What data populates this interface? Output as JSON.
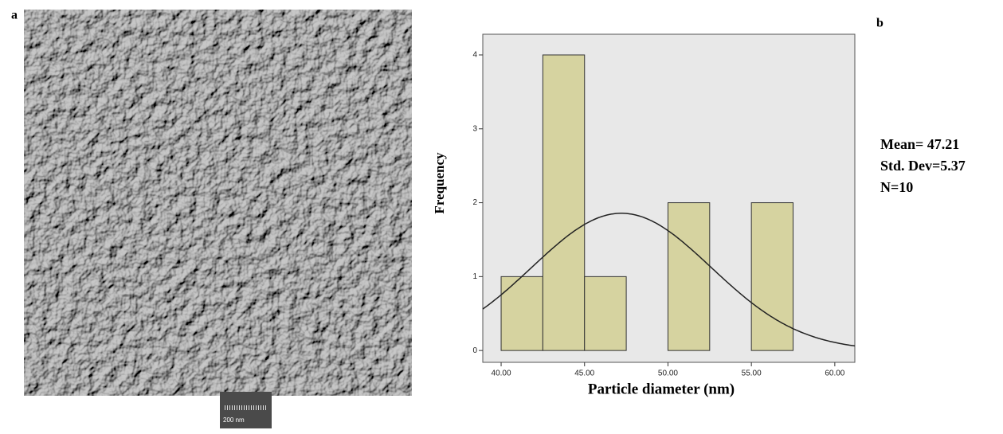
{
  "panel_labels": [
    "a",
    "b"
  ],
  "sem_image": {
    "scale_bar": "200 nm"
  },
  "chart_data": {
    "type": "histogram",
    "xlabel": "Particle diameter (nm)",
    "ylabel": "Frequency",
    "bins": [
      40,
      42.5,
      45,
      47.5,
      50,
      52.5,
      55,
      57.5
    ],
    "counts": [
      1,
      4,
      1,
      0,
      2,
      0,
      2
    ],
    "color": "#d6d3a0",
    "xlim": [
      38.9,
      61.2
    ],
    "ylim": [
      -0.16,
      4.28
    ],
    "xticks": [
      {
        "value": 40,
        "label": "40.00"
      },
      {
        "value": 45,
        "label": "45.00"
      },
      {
        "value": 50,
        "label": "50.00"
      },
      {
        "value": 55,
        "label": "55.00"
      },
      {
        "value": 60,
        "label": "60.00"
      }
    ],
    "yticks": [
      0,
      1,
      2,
      3,
      4
    ],
    "curve": {
      "mean": 47.21,
      "sd": 5.37,
      "n": 10,
      "labels": [
        "Mean= 47.21",
        "Std. Dev=5.37",
        "N=10"
      ]
    }
  }
}
